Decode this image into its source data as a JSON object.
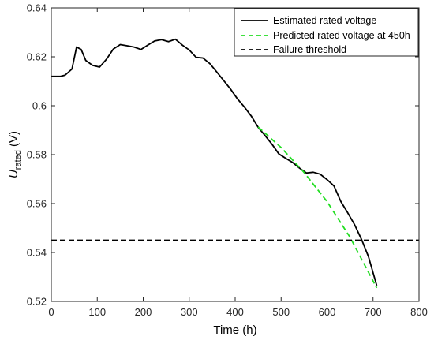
{
  "chart_data": {
    "type": "line",
    "xlabel": "Time (h)",
    "ylabel_main": "U",
    "ylabel_sub": "rated",
    "ylabel_unit": " (V)",
    "xlim": [
      0,
      800
    ],
    "ylim": [
      0.52,
      0.64
    ],
    "xticks": [
      0,
      100,
      200,
      300,
      400,
      500,
      600,
      700,
      800
    ],
    "yticks": [
      0.52,
      0.54,
      0.56,
      0.58,
      0.6,
      0.62,
      0.64
    ],
    "ytick_labels": [
      "0.52",
      "0.54",
      "0.56",
      "0.58",
      "0.6",
      "0.62",
      "0.64"
    ],
    "grid": false,
    "legend_position": "top-right",
    "series": [
      {
        "name": "Estimated rated voltage",
        "color": "#000000",
        "style": "solid",
        "x": [
          0,
          10,
          20,
          30,
          45,
          55,
          65,
          75,
          90,
          105,
          120,
          135,
          150,
          165,
          180,
          195,
          210,
          225,
          240,
          255,
          270,
          285,
          300,
          315,
          330,
          345,
          360,
          375,
          390,
          405,
          420,
          435,
          450,
          465,
          480,
          495,
          510,
          525,
          540,
          555,
          570,
          585,
          600,
          615,
          630,
          645,
          660,
          675,
          690,
          708
        ],
        "y": [
          0.612,
          0.612,
          0.612,
          0.6125,
          0.615,
          0.624,
          0.623,
          0.6185,
          0.6165,
          0.6158,
          0.619,
          0.6232,
          0.625,
          0.6245,
          0.624,
          0.623,
          0.6248,
          0.6265,
          0.627,
          0.6262,
          0.6272,
          0.6248,
          0.6228,
          0.6198,
          0.6195,
          0.6172,
          0.6138,
          0.6103,
          0.6068,
          0.6028,
          0.5995,
          0.5958,
          0.5912,
          0.5878,
          0.5843,
          0.5803,
          0.5785,
          0.5768,
          0.5745,
          0.5725,
          0.5728,
          0.572,
          0.5698,
          0.5672,
          0.5608,
          0.5562,
          0.5513,
          0.5453,
          0.5383,
          0.5265
        ]
      },
      {
        "name": "Predicted rated voltage at 450h",
        "color": "#22dd22",
        "style": "dashed",
        "x": [
          450,
          500,
          550,
          600,
          650,
          708
        ],
        "y": [
          0.5913,
          0.5829,
          0.5727,
          0.5608,
          0.5462,
          0.5255
        ]
      },
      {
        "name": "Failure threshold",
        "color": "#000000",
        "style": "dashed",
        "x": [
          0,
          800
        ],
        "y": [
          0.545,
          0.545
        ]
      }
    ]
  }
}
